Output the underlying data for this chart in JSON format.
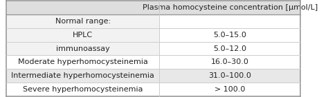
{
  "title_col2": "Plasma homocysteine concentration [μmol/L]",
  "rows": [
    {
      "label": "Normal range:",
      "value": "",
      "indent": 0
    },
    {
      "label": "HPLC",
      "value": "5.0–15.0",
      "indent": 1
    },
    {
      "label": "immunoassay",
      "value": "5.0–12.0",
      "indent": 1
    },
    {
      "label": "Moderate hyperhomocysteinemia",
      "value": "16.0–30.0",
      "indent": 0
    },
    {
      "label": "Intermediate hyperhomocysteinemia",
      "value": "31.0–100.0",
      "indent": 0
    },
    {
      "label": "Severe hyperhomocysteinemia",
      "value": "> 100.0",
      "indent": 0
    }
  ],
  "header_bg": "#dedede",
  "normal_bg": "#f2f2f2",
  "white_bg": "#ffffff",
  "alt_bg": "#e8e8e8",
  "font_size": 8.0,
  "header_font_size": 8.0,
  "col_split": 0.52,
  "fig_bg": "#ffffff",
  "border_color": "#999999",
  "line_color": "#cccccc",
  "row_bgs": [
    "#f2f2f2",
    "#f2f2f2",
    "#f2f2f2",
    "#ffffff",
    "#e8e8e8",
    "#ffffff"
  ],
  "row_right_bgs": [
    "#ffffff",
    "#ffffff",
    "#ffffff",
    "#ffffff",
    "#e8e8e8",
    "#ffffff"
  ]
}
